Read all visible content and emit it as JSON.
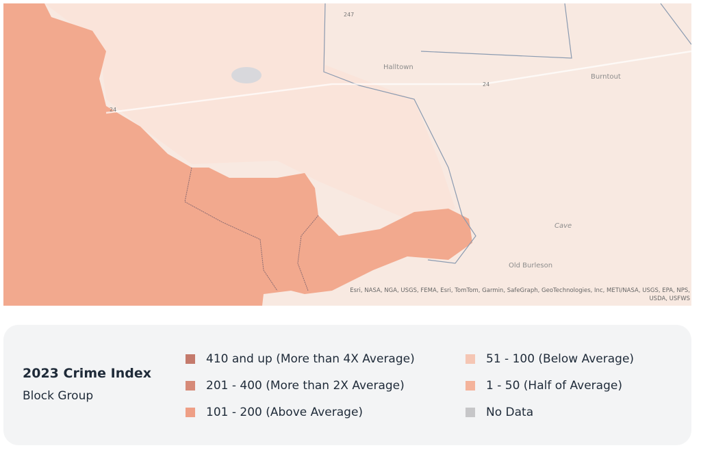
{
  "map": {
    "labels": [
      "Halltown",
      "Burntout",
      "Old Burleson",
      "Cave",
      "24",
      "24",
      "247"
    ],
    "attribution": "Esri, NASA, NGA, USGS, FEMA, Esri, TomTom, Garmin, SafeGraph, GeoTechnologies, Inc, METI/NASA, USGS, EPA, NPS, USDA, USFWS"
  },
  "legend": {
    "title": "2023 Crime Index",
    "subtitle": "Block Group",
    "items": [
      {
        "label": "410 and up (More than 4X Average)",
        "color": "#c47a6c"
      },
      {
        "label": "201 - 400 (More than 2X Average)",
        "color": "#d68a78"
      },
      {
        "label": "101 - 200 (Above Average)",
        "color": "#ee9f86"
      },
      {
        "label": "51 - 100 (Below Average)",
        "color": "#f5c6b4"
      },
      {
        "label": "1 - 50 (Half of Average)",
        "color": "#f4b39b"
      },
      {
        "label": "No Data",
        "color": "#c6c6c8"
      }
    ]
  }
}
